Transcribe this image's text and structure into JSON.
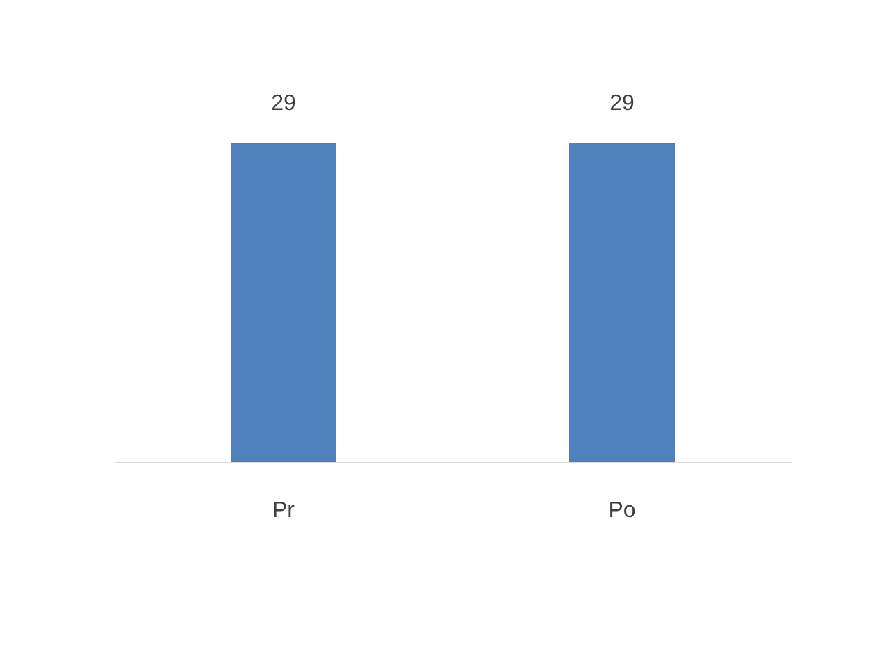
{
  "chart_data": {
    "type": "bar",
    "categories": [
      "Pr",
      "Po"
    ],
    "values": [
      29,
      29
    ],
    "color": "#4f81bd",
    "data_labels": true,
    "grid": false
  }
}
